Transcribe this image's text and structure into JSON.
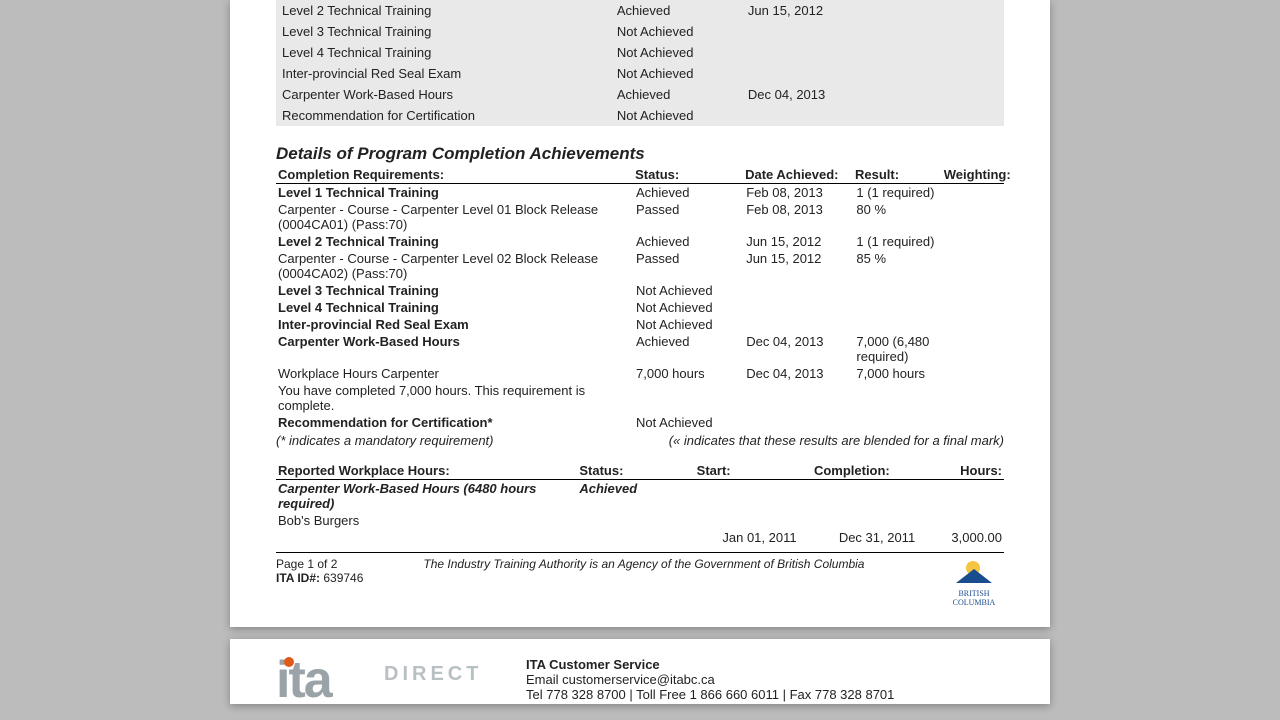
{
  "summary_rows": [
    {
      "req": "Level 2 Technical Training",
      "status": "Achieved",
      "date": "Jun 15, 2012"
    },
    {
      "req": "Level 3 Technical Training",
      "status": "Not Achieved",
      "date": ""
    },
    {
      "req": "Level 4 Technical Training",
      "status": "Not Achieved",
      "date": ""
    },
    {
      "req": "Inter-provincial Red Seal Exam",
      "status": "Not Achieved",
      "date": ""
    },
    {
      "req": "Carpenter Work-Based Hours",
      "status": "Achieved",
      "date": "Dec 04, 2013"
    },
    {
      "req": "Recommendation for Certification",
      "status": "Not Achieved",
      "date": ""
    }
  ],
  "section_title": "Details of Program Completion Achievements",
  "details_headers": {
    "req": "Completion Requirements:",
    "status": "Status:",
    "date": "Date Achieved:",
    "result": "Result:",
    "weight": "Weighting:"
  },
  "details_rows": [
    {
      "cls": "bold indent1",
      "req": "Level 1 Technical Training",
      "status": "Achieved",
      "date": "Feb 08, 2013",
      "result": "1 (1 required)",
      "weight": ""
    },
    {
      "cls": "indent2",
      "req": "Carpenter - Course - Carpenter Level 01 Block Release (0004CA01) (Pass:70)",
      "status": "Passed",
      "date": "Feb 08, 2013",
      "result": "80 %",
      "weight": ""
    },
    {
      "cls": "bold indent1",
      "req": "Level 2 Technical Training",
      "status": "Achieved",
      "date": "Jun 15, 2012",
      "result": "1 (1 required)",
      "weight": ""
    },
    {
      "cls": "indent2",
      "req": "Carpenter - Course - Carpenter Level 02 Block Release (0004CA02) (Pass:70)",
      "status": "Passed",
      "date": "Jun 15, 2012",
      "result": "85 %",
      "weight": ""
    },
    {
      "cls": "bold indent1",
      "req": "Level 3 Technical Training",
      "status": "Not Achieved",
      "date": "",
      "result": "",
      "weight": ""
    },
    {
      "cls": "bold indent1",
      "req": "Level 4 Technical Training",
      "status": "Not Achieved",
      "date": "",
      "result": "",
      "weight": ""
    },
    {
      "cls": "bold indent1",
      "req": "Inter-provincial Red Seal Exam",
      "status": "Not Achieved",
      "date": "",
      "result": "",
      "weight": ""
    },
    {
      "cls": "bold indent1",
      "req": "Carpenter Work-Based Hours",
      "status": "Achieved",
      "date": "Dec 04, 2013",
      "result": "7,000 (6,480 required)",
      "weight": ""
    },
    {
      "cls": "indent0",
      "req": "Workplace Hours Carpenter",
      "status": "7,000 hours",
      "date": "Dec 04, 2013",
      "result": "7,000 hours",
      "weight": ""
    },
    {
      "cls": "indent0",
      "req": "You have completed 7,000 hours. This requirement is complete.",
      "status": "",
      "date": "",
      "result": "",
      "weight": ""
    },
    {
      "cls": "bold indent1",
      "req": "Recommendation for Certification*",
      "status": "Not Achieved",
      "date": "",
      "result": "",
      "weight": ""
    }
  ],
  "note_left": "(* indicates a mandatory requirement)",
  "note_right": "(« indicates that these results are blended for a final mark)",
  "hours_headers": {
    "req": "Reported Workplace Hours:",
    "status": "Status:",
    "start": "Start:",
    "comp": "Completion:",
    "hours": "Hours:"
  },
  "hours_title": "Carpenter Work-Based Hours  (6480 hours required)",
  "hours_title_status": "Achieved",
  "hours_employer": "Bob's Burgers",
  "hours_row": {
    "start": "Jan 01, 2011",
    "comp": "Dec 31, 2011",
    "hours": "3,000.00"
  },
  "footer": {
    "page": "Page 1 of 2",
    "ita_label": "ITA ID#:",
    "ita_id": "639746",
    "agency": "The Industry Training Authority is an Agency of the Government of British Columbia",
    "logo_text": "BRITISH COLUMBIA"
  },
  "page2": {
    "logo_main": "ita",
    "logo_sub": "DIRECT",
    "contact_hdr": "ITA Customer Service",
    "email": "Email customerservice@itabc.ca",
    "phone": "Tel 778 328 8700 | Toll Free 1 866 660 6011 | Fax 778 328 8701"
  },
  "colors": {
    "page_bg": "#bcbcbc",
    "doc_bg": "#ffffff",
    "summary_bg": "#e9e9e9",
    "text": "#222222",
    "logo_orange": "#e05a1a",
    "logo_grey": "#9aa3a8",
    "bc_blue": "#1a4d8f",
    "bc_sun": "#f5c542"
  }
}
